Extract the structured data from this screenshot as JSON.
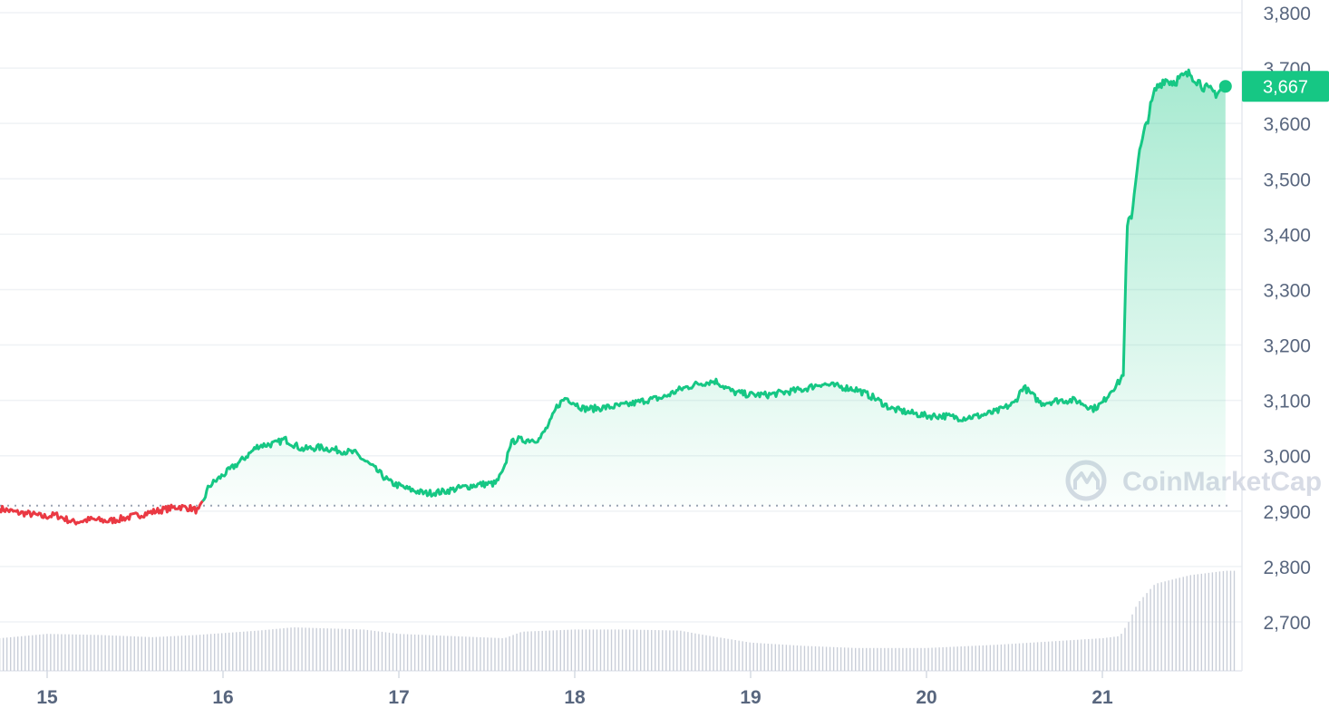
{
  "chart_data": {
    "type": "area",
    "y_ticks": [
      "2,700",
      "2,800",
      "2,900",
      "3,000",
      "3,100",
      "3,200",
      "3,300",
      "3,400",
      "3,500",
      "3,600",
      "3,700",
      "3,800"
    ],
    "ylim": [
      2620,
      3820
    ],
    "x_ticks": [
      "15",
      "16",
      "17",
      "18",
      "19",
      "20",
      "21"
    ],
    "x_tick_values": [
      15,
      16,
      17,
      18,
      19,
      20,
      21
    ],
    "xlim": [
      14.73,
      21.75
    ],
    "baseline": 2910,
    "current_value": 3667,
    "current_label": "3,667",
    "grid": true,
    "colors": {
      "up": "#16c784",
      "down": "#ea3943",
      "axis_text": "#58667e",
      "grid": "#eff2f5",
      "volume": "#c9ced8"
    },
    "series": [
      {
        "x": [
          14.73,
          14.82,
          14.9,
          14.98,
          15.05,
          15.15,
          15.25,
          15.35,
          15.45,
          15.55,
          15.65,
          15.75,
          15.82,
          15.86,
          15.88,
          15.92,
          16.0,
          16.1,
          16.2,
          16.3,
          16.35,
          16.45,
          16.55,
          16.65,
          16.75,
          16.85,
          16.95,
          17.05,
          17.15,
          17.25,
          17.35,
          17.45,
          17.55,
          17.6,
          17.63,
          17.67,
          17.7,
          17.8,
          17.86,
          17.9,
          17.95,
          18.05,
          18.1,
          18.2,
          18.3,
          18.4,
          18.5,
          18.6,
          18.7,
          18.8,
          18.9,
          19.0,
          19.1,
          19.2,
          19.3,
          19.4,
          19.5,
          19.6,
          19.7,
          19.8,
          19.9,
          20.0,
          20.1,
          20.2,
          20.3,
          20.4,
          20.5,
          20.55,
          20.6,
          20.65,
          20.75,
          20.85,
          20.95,
          21.0,
          21.05,
          21.1,
          21.12,
          21.14,
          21.17,
          21.2,
          21.25,
          21.3,
          21.35,
          21.4,
          21.5,
          21.6,
          21.65,
          21.7
        ],
        "y": [
          2905,
          2898,
          2895,
          2890,
          2893,
          2880,
          2885,
          2882,
          2888,
          2895,
          2902,
          2908,
          2905,
          2900,
          2912,
          2945,
          2965,
          2990,
          3018,
          3022,
          3030,
          3012,
          3015,
          3010,
          3005,
          2980,
          2952,
          2940,
          2932,
          2935,
          2942,
          2948,
          2950,
          2975,
          3020,
          3030,
          3028,
          3030,
          3060,
          3090,
          3105,
          3085,
          3085,
          3088,
          3092,
          3100,
          3105,
          3120,
          3130,
          3135,
          3115,
          3110,
          3110,
          3115,
          3120,
          3130,
          3125,
          3120,
          3105,
          3085,
          3078,
          3072,
          3072,
          3068,
          3072,
          3080,
          3095,
          3125,
          3110,
          3095,
          3100,
          3100,
          3085,
          3095,
          3118,
          3135,
          3150,
          3410,
          3440,
          3530,
          3600,
          3660,
          3680,
          3675,
          3690,
          3660,
          3655,
          3667
        ]
      }
    ],
    "volume": {
      "x": [
        14.73,
        15.0,
        15.3,
        15.6,
        15.85,
        16.2,
        16.4,
        16.8,
        17.0,
        17.3,
        17.6,
        17.7,
        18.0,
        18.3,
        18.6,
        18.7,
        19.0,
        19.3,
        19.6,
        20.0,
        20.4,
        20.8,
        21.0,
        21.1,
        21.15,
        21.2,
        21.3,
        21.5,
        21.7
      ],
      "v": [
        0.3,
        0.34,
        0.33,
        0.31,
        0.33,
        0.37,
        0.4,
        0.38,
        0.34,
        0.32,
        0.3,
        0.36,
        0.38,
        0.38,
        0.37,
        0.34,
        0.26,
        0.23,
        0.21,
        0.21,
        0.24,
        0.28,
        0.3,
        0.32,
        0.45,
        0.62,
        0.8,
        0.88,
        0.92
      ]
    }
  },
  "watermark": {
    "text": "CoinMarketCap"
  }
}
